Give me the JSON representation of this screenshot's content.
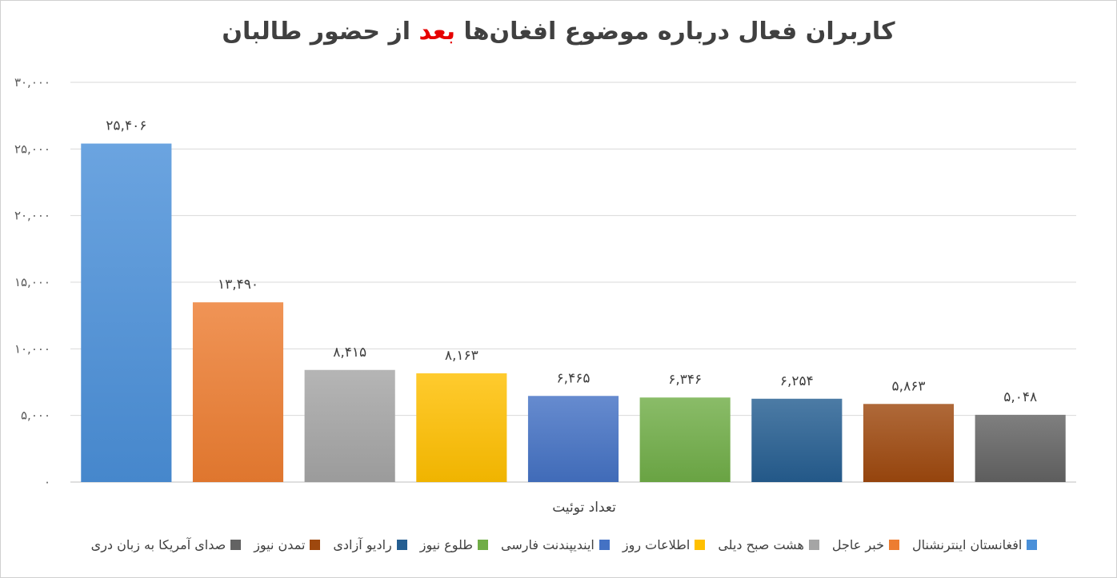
{
  "chart_data": {
    "type": "bar",
    "title_parts": [
      "کاربران فعال درباره موضوع افغان‌ها ",
      "بعد",
      " از حضور طالبان"
    ],
    "xlabel": "تعداد توئیت",
    "ylabel": "",
    "ylim": [
      0,
      30000
    ],
    "ytick_values": [
      0,
      5000,
      10000,
      15000,
      20000,
      25000,
      30000
    ],
    "ytick_labels": [
      "۰",
      "۵,۰۰۰",
      "۱۰,۰۰۰",
      "۱۵,۰۰۰",
      "۲۰,۰۰۰",
      "۲۵,۰۰۰",
      "۳۰,۰۰۰"
    ],
    "grid": true,
    "legend_position": "bottom",
    "series": [
      {
        "name": "افغانستان اینترنشنال",
        "value": 25406,
        "label": "۲۵,۴۰۶",
        "color": "#4a90d9"
      },
      {
        "name": "خبر عاجل",
        "value": 13490,
        "label": "۱۳,۴۹۰",
        "color": "#ed7d31"
      },
      {
        "name": "هشت صبح دیلی",
        "value": 8415,
        "label": "۸,۴۱۵",
        "color": "#a5a5a5"
      },
      {
        "name": "اطلاعات روز",
        "value": 8163,
        "label": "۸,۱۶۳",
        "color": "#ffc000"
      },
      {
        "name": "ایندیپندنت فارسی",
        "value": 6465,
        "label": "۶,۴۶۵",
        "color": "#4472c4"
      },
      {
        "name": "طلوع نیوز",
        "value": 6346,
        "label": "۶,۳۴۶",
        "color": "#70ad47"
      },
      {
        "name": "رادیو آزادی",
        "value": 6254,
        "label": "۶,۲۵۴",
        "color": "#255e91"
      },
      {
        "name": "تمدن نیوز",
        "value": 5863,
        "label": "۵,۸۶۳",
        "color": "#9e480e"
      },
      {
        "name": "صدای آمریکا به زبان دری",
        "value": 5048,
        "label": "۵,۰۴۸",
        "color": "#636363"
      }
    ]
  }
}
